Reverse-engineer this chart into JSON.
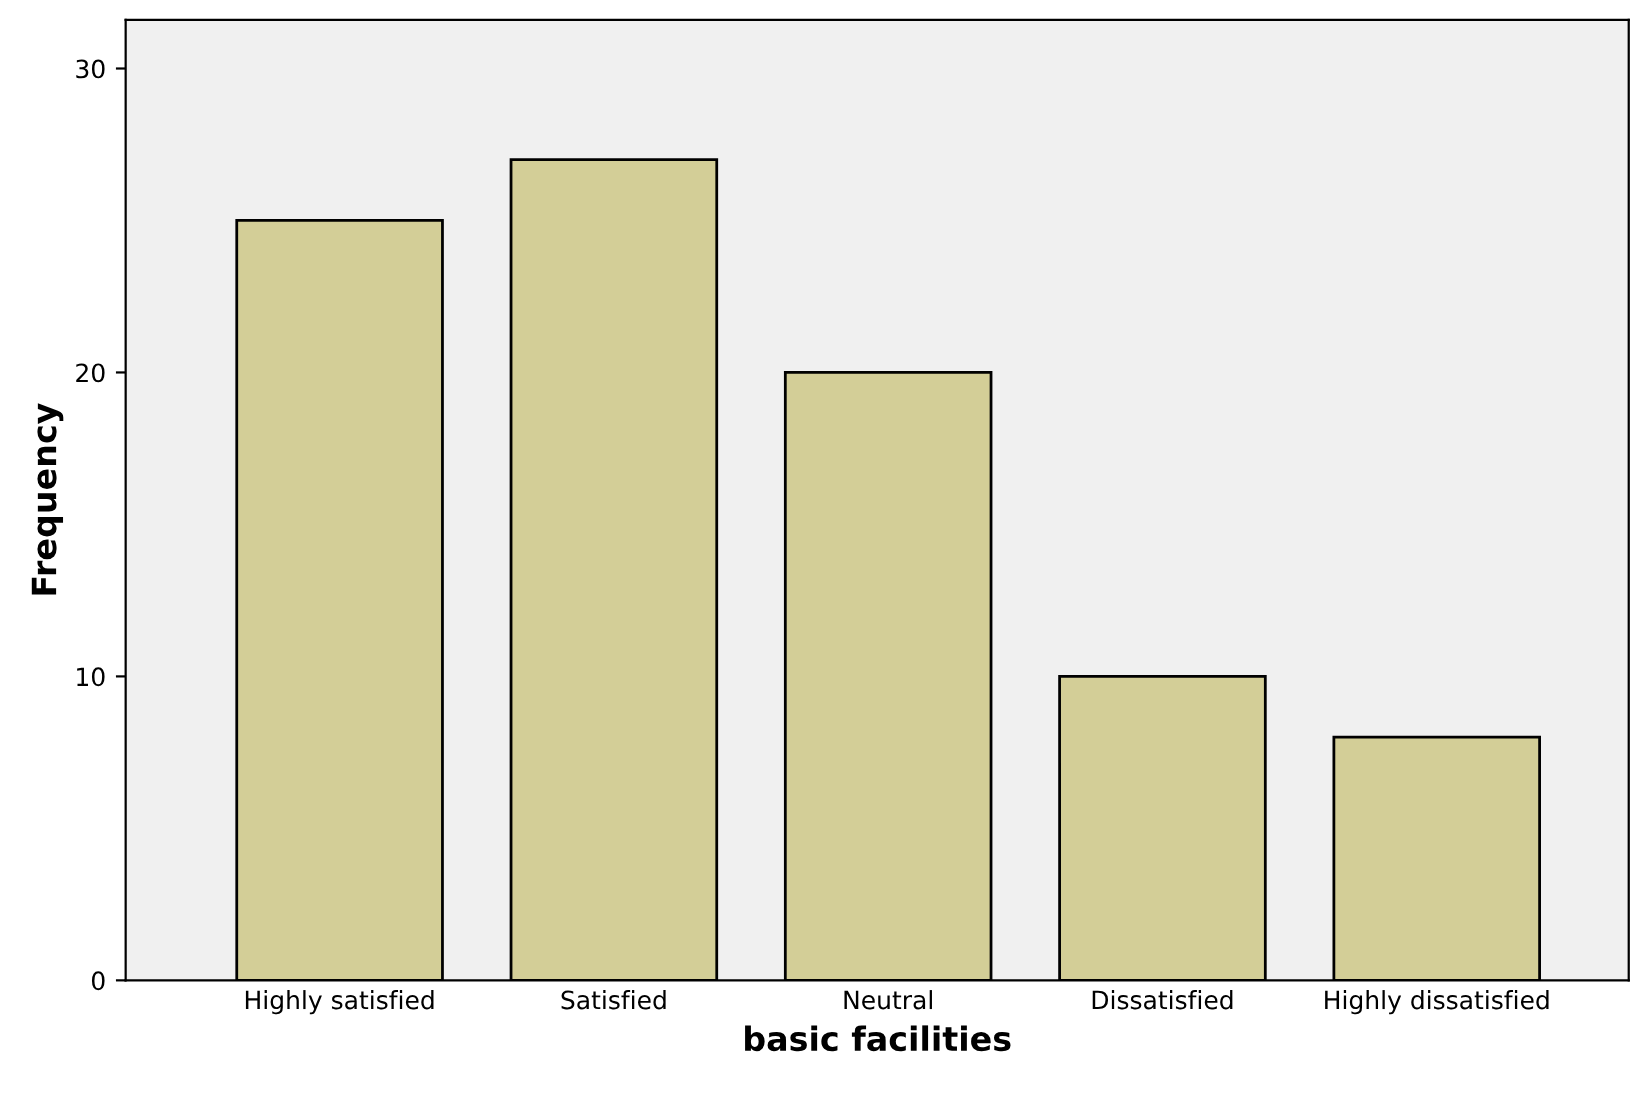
{
  "chart_data": {
    "type": "bar",
    "xlabel": "basic facilities",
    "ylabel": "Frequency",
    "categories": [
      "Highly satisfied",
      "Satisfied",
      "Neutral",
      "Dissatisfied",
      "Highly dissatisfied"
    ],
    "values": [
      25,
      27,
      20,
      10,
      8
    ],
    "color": "#d3ce97",
    "ylim": [
      0,
      31.6
    ],
    "yticks": [
      0,
      10,
      20,
      30
    ],
    "grid": false,
    "legend": false
  }
}
